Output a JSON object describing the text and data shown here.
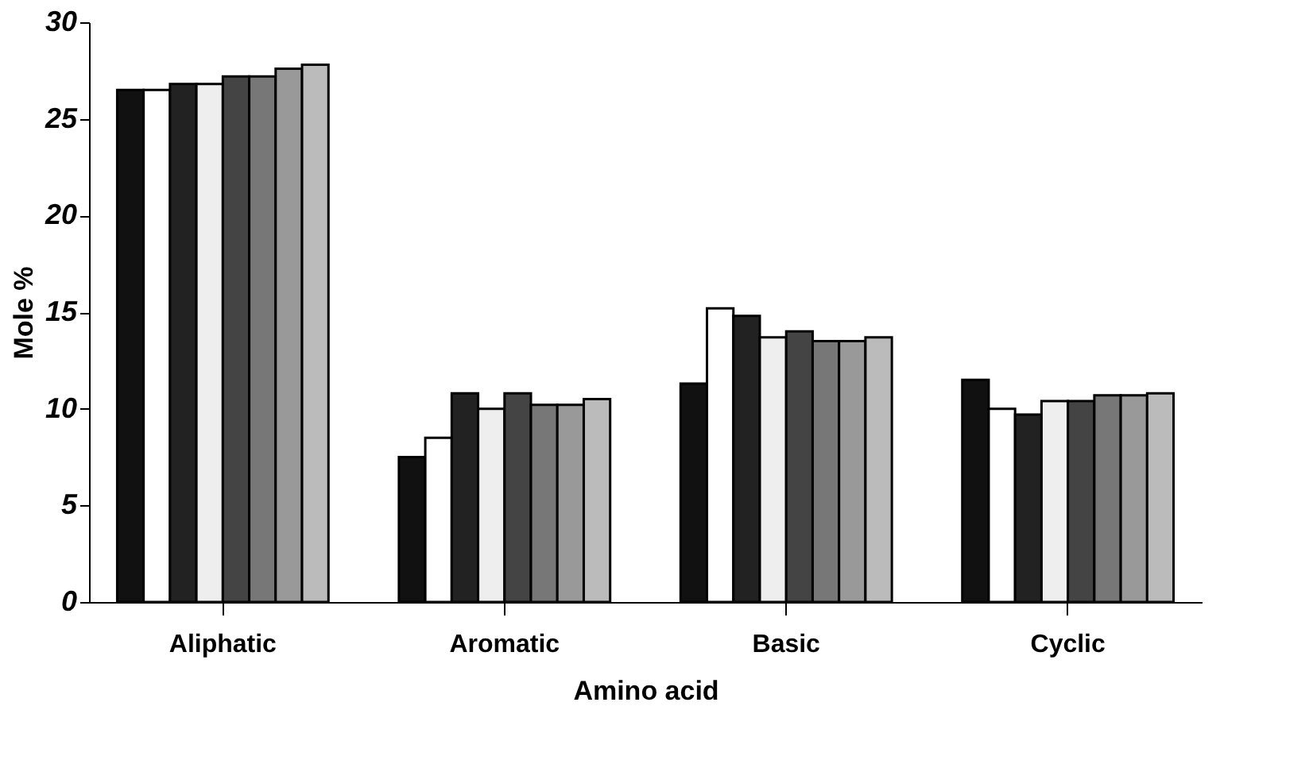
{
  "chart_data": {
    "type": "bar",
    "xlabel": "Amino acid",
    "ylabel": "Mole %",
    "categories": [
      "Aliphatic",
      "Aromatic",
      "Basic",
      "Cyclic"
    ],
    "series": [
      {
        "color": "#111111",
        "values": [
          26.5,
          7.5,
          11.3,
          11.5
        ]
      },
      {
        "color": "#ffffff",
        "values": [
          26.5,
          8.5,
          15.2,
          10.0
        ]
      },
      {
        "color": "#222222",
        "values": [
          26.8,
          10.8,
          14.8,
          9.7
        ]
      },
      {
        "color": "#eeeeee",
        "values": [
          26.8,
          10.0,
          13.7,
          10.4
        ]
      },
      {
        "color": "#444444",
        "values": [
          27.2,
          10.8,
          14.0,
          10.4
        ]
      },
      {
        "color": "#777777",
        "values": [
          27.2,
          10.2,
          13.5,
          10.7
        ]
      },
      {
        "color": "#999999",
        "values": [
          27.6,
          10.2,
          13.5,
          10.7
        ]
      },
      {
        "color": "#bbbbbb",
        "values": [
          27.8,
          10.5,
          13.7,
          10.8
        ]
      }
    ],
    "ylim": [
      0,
      30
    ],
    "yticks": [
      0,
      5,
      10,
      15,
      20,
      25,
      30
    ],
    "grid": false,
    "legend": false
  }
}
